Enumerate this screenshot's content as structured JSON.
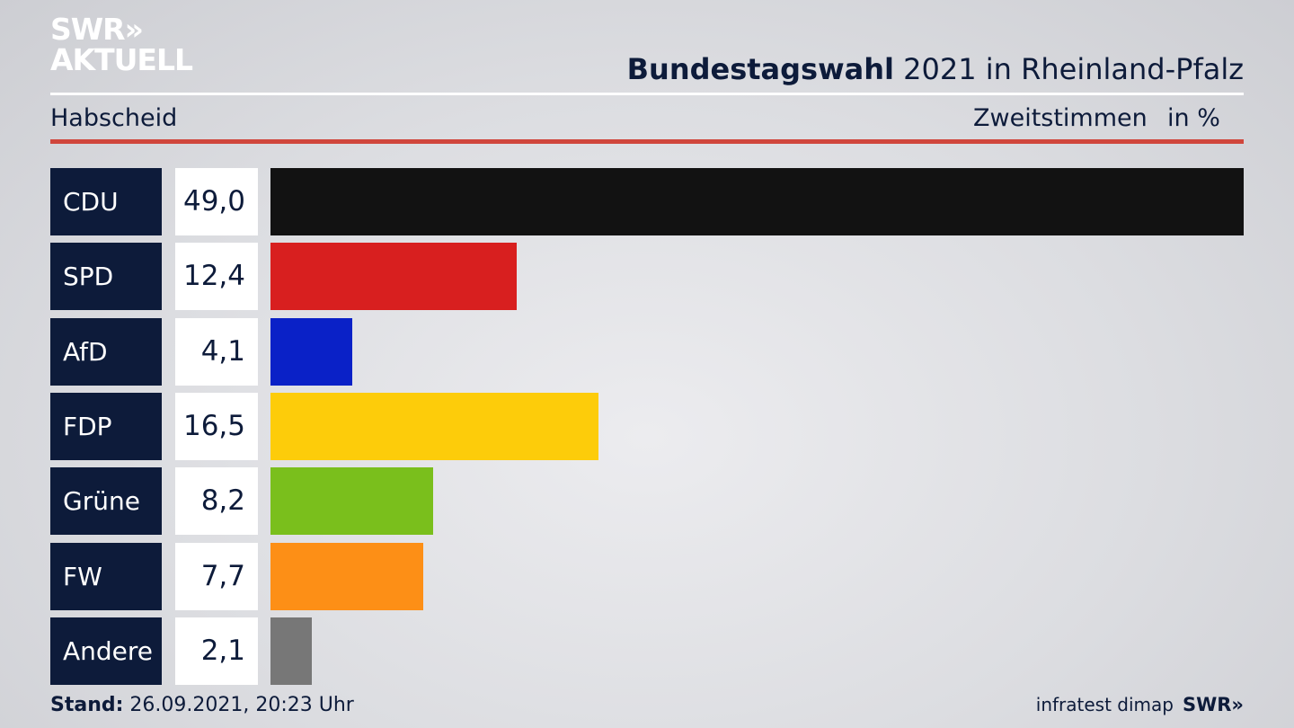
{
  "logo": {
    "line1": "SWR»",
    "line2": "AKTUELL"
  },
  "header": {
    "title_bold": "Bundestagswahl",
    "title_rest": " 2021 in Rheinland-Pfalz",
    "subtitle": "Habscheid",
    "measure": "Zweitstimmen",
    "unit": "in %"
  },
  "chart_data": {
    "type": "bar",
    "orientation": "horizontal",
    "title": "Bundestagswahl 2021 in Rheinland-Pfalz",
    "subtitle": "Habscheid",
    "categories": [
      "CDU",
      "SPD",
      "AfD",
      "FDP",
      "Grüne",
      "FW",
      "Andere"
    ],
    "values": [
      49.0,
      12.4,
      4.1,
      16.5,
      8.2,
      7.7,
      2.1
    ],
    "value_labels": [
      "49,0",
      "12,4",
      "4,1",
      "16,5",
      "8,2",
      "7,7",
      "2,1"
    ],
    "colors": [
      "#121212",
      "#d81f1f",
      "#0a21c7",
      "#fdcc0a",
      "#7abf1c",
      "#fd8f16",
      "#777777"
    ],
    "xlim": [
      0,
      49.0
    ],
    "unit": "%"
  },
  "footer": {
    "stand_label": "Stand:",
    "stand_value": " 26.09.2021, 20:23 Uhr",
    "source": "infratest dimap",
    "brand": "SWR»"
  }
}
